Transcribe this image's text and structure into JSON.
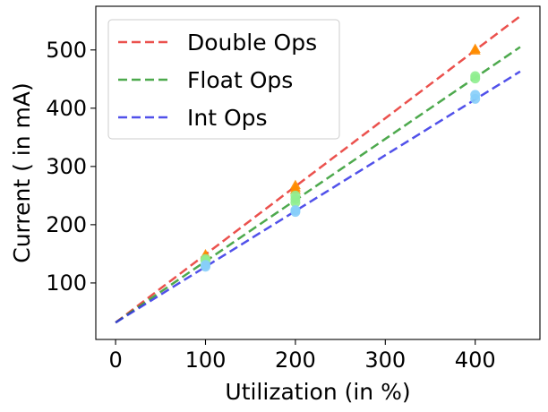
{
  "chart_data": {
    "type": "scatter",
    "xlabel": "Utilization (in %)",
    "ylabel": "Current ( in mA)",
    "xlim": [
      -22,
      472
    ],
    "ylim": [
      3,
      575
    ],
    "x_ticks": [
      0,
      100,
      200,
      300,
      400
    ],
    "y_ticks": [
      100,
      200,
      300,
      400,
      500
    ],
    "grid": false,
    "legend_position": "top-left",
    "series": [
      {
        "name": "Double Ops",
        "line_color": "#e8322e",
        "marker_color": "#ff8c00",
        "marker": "triangle",
        "fit_line": {
          "x": [
            0,
            450
          ],
          "y": [
            32,
            558
          ]
        },
        "points": [
          {
            "x": 100,
            "y": 146
          },
          {
            "x": 100,
            "y": 149
          },
          {
            "x": 200,
            "y": 260
          },
          {
            "x": 200,
            "y": 264
          },
          {
            "x": 200,
            "y": 268
          },
          {
            "x": 400,
            "y": 499
          },
          {
            "x": 400,
            "y": 502
          }
        ]
      },
      {
        "name": "Float Ops",
        "line_color": "#2e9a2e",
        "marker_color": "#90ee90",
        "marker": "circle",
        "fit_line": {
          "x": [
            0,
            450
          ],
          "y": [
            32,
            505
          ]
        },
        "points": [
          {
            "x": 100,
            "y": 138
          },
          {
            "x": 100,
            "y": 141
          },
          {
            "x": 200,
            "y": 238
          },
          {
            "x": 200,
            "y": 244
          },
          {
            "x": 200,
            "y": 250
          },
          {
            "x": 400,
            "y": 451
          },
          {
            "x": 400,
            "y": 455
          }
        ]
      },
      {
        "name": "Int Ops",
        "line_color": "#3232e6",
        "marker_color": "#87cefa",
        "marker": "circle",
        "fit_line": {
          "x": [
            0,
            450
          ],
          "y": [
            32,
            463
          ]
        },
        "points": [
          {
            "x": 100,
            "y": 128
          },
          {
            "x": 100,
            "y": 131
          },
          {
            "x": 200,
            "y": 222
          },
          {
            "x": 200,
            "y": 225
          },
          {
            "x": 400,
            "y": 416
          },
          {
            "x": 400,
            "y": 423
          }
        ]
      }
    ]
  }
}
